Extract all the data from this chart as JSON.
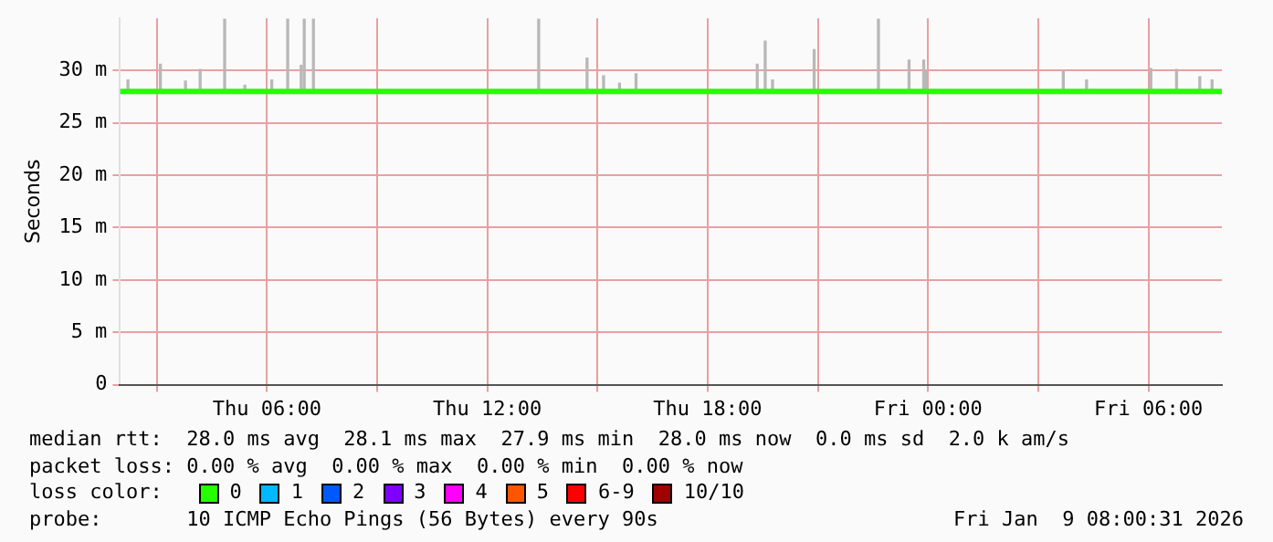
{
  "chart_data": {
    "type": "line",
    "ylabel": "Seconds",
    "legend_title": "loss color:",
    "legend": "bottom",
    "grid": true,
    "xlim": [
      "2026-01-08T02:00",
      "2026-01-09T08:00"
    ],
    "xticks": [
      {
        "value": "2026-01-08T03:00",
        "label": null
      },
      {
        "value": "2026-01-08T06:00",
        "label": "Thu 06:00"
      },
      {
        "value": "2026-01-08T09:00",
        "label": null
      },
      {
        "value": "2026-01-08T12:00",
        "label": "Thu 12:00"
      },
      {
        "value": "2026-01-08T15:00",
        "label": null
      },
      {
        "value": "2026-01-08T18:00",
        "label": "Thu 18:00"
      },
      {
        "value": "2026-01-08T21:00",
        "label": null
      },
      {
        "value": "2026-01-09T00:00",
        "label": "Fri 00:00"
      },
      {
        "value": "2026-01-09T03:00",
        "label": null
      },
      {
        "value": "2026-01-09T06:00",
        "label": "Fri 06:00"
      }
    ],
    "ylim": [
      0,
      35
    ],
    "yticks": [
      0,
      {
        "value": 5,
        "label": "5 m"
      },
      {
        "value": 10,
        "label": "10 m"
      },
      {
        "value": 15,
        "label": "15 m"
      },
      {
        "value": 20,
        "label": "20 m"
      },
      {
        "value": 25,
        "label": "25 m"
      },
      {
        "value": 30,
        "label": "30 m"
      }
    ],
    "series": [
      {
        "type": "bar",
        "color": "#b8b8b8",
        "x": [
          "2026-01-08T02:13",
          "2026-01-08T03:06",
          "2026-01-08T03:47",
          "2026-01-08T04:11",
          "2026-01-08T04:51",
          "2026-01-08T05:24",
          "2026-01-08T06:08",
          "2026-01-08T06:34",
          "2026-01-08T06:56",
          "2026-01-08T07:01",
          "2026-01-08T07:16",
          "2026-01-08T13:24",
          "2026-01-08T14:43",
          "2026-01-08T15:10",
          "2026-01-08T15:36",
          "2026-01-08T16:03",
          "2026-01-08T19:21",
          "2026-01-08T19:34",
          "2026-01-08T19:46",
          "2026-01-08T20:54",
          "2026-01-08T22:39",
          "2026-01-08T23:29",
          "2026-01-08T23:53",
          "2026-01-08T23:57",
          "2026-01-09T03:41",
          "2026-01-09T04:19",
          "2026-01-09T06:04",
          "2026-01-09T06:46",
          "2026-01-09T07:24",
          "2026-01-09T07:44"
        ],
        "base": [
          28,
          28,
          28,
          28,
          28,
          28,
          28,
          28,
          28,
          28,
          28,
          28,
          28,
          28,
          28,
          28,
          28,
          28,
          28,
          28,
          28,
          28,
          28,
          28,
          28,
          28,
          28,
          28,
          28,
          28
        ],
        "values": [
          1.1,
          2.6,
          1,
          2.1,
          6.9,
          0.6,
          1.1,
          6.9,
          2.5,
          6.9,
          6.9,
          6.9,
          3.2,
          1.5,
          0.8,
          1.7,
          2.6,
          4.8,
          1.1,
          4,
          6.9,
          3,
          3,
          2,
          2,
          1.1,
          2.2,
          2.1,
          1.4,
          1.1
        ]
      },
      {
        "name": "0",
        "color": "#26ff00",
        "marker": "none",
        "x": [
          "2026-01-08T02:00",
          "2026-01-08T12:00",
          "2026-01-08T20:00",
          "2026-01-09T08:00"
        ],
        "values": [
          28,
          28,
          28,
          28
        ]
      },
      {
        "name": "1",
        "color": "#00b8ff"
      },
      {
        "name": "2",
        "color": "#0059ff"
      },
      {
        "name": "3",
        "color": "#7e00ff"
      },
      {
        "name": "4",
        "color": "#ff00ff"
      },
      {
        "name": "5",
        "color": "#ff5500"
      },
      {
        "name": "6-9",
        "color": "#ff0000"
      },
      {
        "name": "10/10",
        "color": "#a10000"
      }
    ],
    "annotations": [
      "median rtt:  28.0 ms avg  28.1 ms max  27.9 ms min  28.0 ms now  0.0 ms sd  2.0 k am/s",
      "packet loss: 0.00 % avg  0.00 % max  0.00 % min  0.00 % now",
      "probe:       10 ICMP Echo Pings (56 Bytes) every 90s",
      "Fri Jan  9 08:00:31 2026"
    ]
  }
}
